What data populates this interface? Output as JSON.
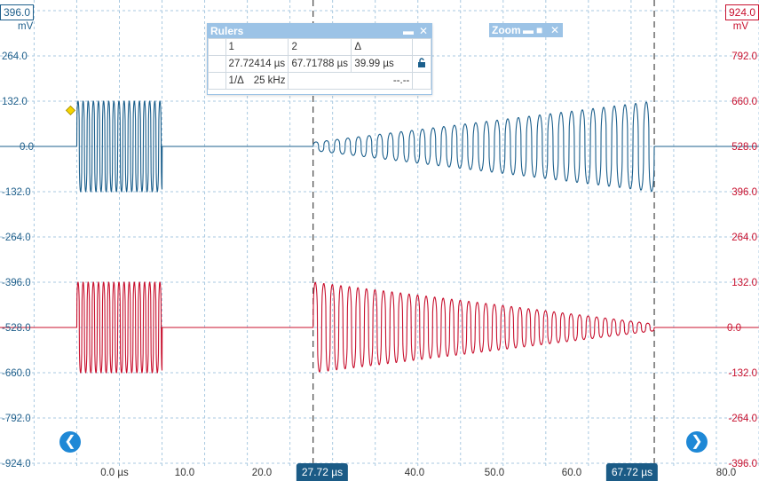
{
  "left_axis": {
    "top_tag": "396.0",
    "unit": "mV",
    "ticks": [
      "264.0",
      "132.0",
      "0.0",
      "-132.0",
      "-264.0",
      "-396.0",
      "-528.0",
      "-660.0",
      "-792.0",
      "-924.0"
    ]
  },
  "right_axis": {
    "top_tag": "924.0",
    "unit": "mV",
    "ticks": [
      "792.0",
      "660.0",
      "528.0",
      "396.0",
      "264.0",
      "132.0",
      "0.0",
      "-132.0",
      "-264.0",
      "-396.0"
    ]
  },
  "x_axis": {
    "ticks": [
      "0.0 µs",
      "10.0",
      "20.0",
      "40.0",
      "50.0",
      "60.0",
      "80.0"
    ]
  },
  "colors": {
    "channel_a": "#1b5f8c",
    "channel_b": "#c8102e",
    "grid": "#a9c9e0",
    "accent": "#1e88d6"
  },
  "rulers_panel": {
    "title": "Rulers",
    "col1": "1",
    "col2": "2",
    "col_delta": "Δ",
    "ruler1_value": "27.72414 µs",
    "ruler2_value": "67.71788 µs",
    "delta_value": "39.99 µs",
    "inv_label": "1/Δ",
    "inv_value": "25 kHz",
    "extra_value": "--.--",
    "lock_icon": "lock-icon"
  },
  "zoom_panel": {
    "title": "Zoom"
  },
  "ruler_tags": {
    "r1": "27.72 µs",
    "r2": "67.72 µs"
  },
  "nav": {
    "left_icon": "chevron-left-icon",
    "right_icon": "chevron-right-icon"
  },
  "chart_data": {
    "type": "line",
    "xlabel": "",
    "ylabel": "",
    "xlim": [
      -9.0,
      80.0
    ],
    "x_unit": "µs",
    "grid": true,
    "series": [
      {
        "axis": "left",
        "ylim": [
          -924,
          396
        ],
        "baseline": 0,
        "bursts": [
          {
            "start": 0.0,
            "end": 10.0,
            "period": 0.6,
            "amplitude_start": 132,
            "amplitude_end": 132
          },
          {
            "start": 27.72,
            "end": 67.72,
            "period": 1.25,
            "amplitude_start": 12,
            "amplitude_end": 132
          }
        ]
      },
      {
        "axis": "right",
        "ylim": [
          -396,
          924
        ],
        "baseline": 0,
        "bursts": [
          {
            "start": 0.0,
            "end": 10.0,
            "period": 0.6,
            "amplitude_start": 132,
            "amplitude_end": 132
          },
          {
            "start": 27.72,
            "end": 67.72,
            "period": 1.0,
            "amplitude_start": 132,
            "amplitude_end": 10
          }
        ]
      }
    ],
    "rulers": [
      27.72,
      67.72
    ],
    "marker": {
      "x": 0.0,
      "y": 105,
      "axis": "left"
    }
  }
}
